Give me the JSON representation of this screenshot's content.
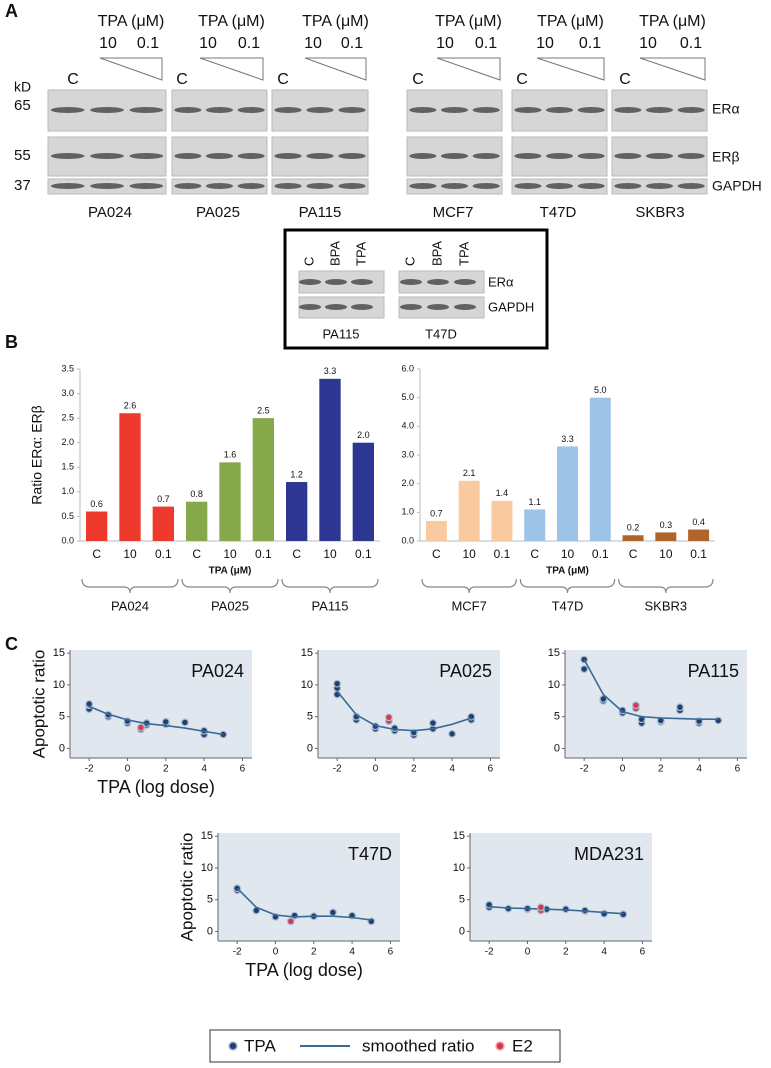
{
  "panel_a": {
    "label": "A",
    "kd": "kD",
    "markers": [
      "65",
      "55",
      "37"
    ],
    "proteins": [
      "ERα",
      "ERβ",
      "GAPDH"
    ],
    "blots": [
      {
        "header": "TPA (μM)",
        "high": "10",
        "low": "0.1",
        "control": "C",
        "cell_line": "PA024"
      },
      {
        "header": "TPA (μM)",
        "high": "10",
        "low": "0.1",
        "control": "C",
        "cell_line": "PA025"
      },
      {
        "header": "TPA (μM)",
        "high": "10",
        "low": "0.1",
        "control": "C",
        "cell_line": "PA115"
      },
      {
        "header": "TPA (μM)",
        "high": "10",
        "low": "0.1",
        "control": "C",
        "cell_line": "MCF7"
      },
      {
        "header": "TPA (μM)",
        "high": "10",
        "low": "0.1",
        "control": "C",
        "cell_line": "T47D"
      },
      {
        "header": "TPA (μM)",
        "high": "10",
        "low": "0.1",
        "control": "C",
        "cell_line": "SKBR3"
      }
    ],
    "inset": {
      "lanes": [
        "C",
        "BPA",
        "TPA"
      ],
      "proteins": [
        "ERα",
        "GAPDH"
      ],
      "cell_lines": [
        "PA115",
        "T47D"
      ]
    }
  },
  "panel_b_label": "B",
  "panel_c_label": "C",
  "chart_data": [
    {
      "type": "bar",
      "ylabel": "Ratio ERα: ERβ",
      "xlabel": "TPA (μM)",
      "categories": [
        "C",
        "10",
        "0.1",
        "C",
        "10",
        "0.1",
        "C",
        "10",
        "0.1"
      ],
      "values": [
        0.6,
        2.6,
        0.7,
        0.8,
        1.6,
        2.5,
        1.2,
        3.3,
        2.0
      ],
      "value_labels": [
        "0.6",
        "2.6",
        "0.7",
        "0.8",
        "1.6",
        "2.5",
        "1.2",
        "3.3",
        "2.0"
      ],
      "colors": [
        "#ee3a2c",
        "#ee3a2c",
        "#ee3a2c",
        "#86a84a",
        "#86a84a",
        "#86a84a",
        "#2d3691",
        "#2d3691",
        "#2d3691"
      ],
      "groups": [
        "PA024",
        "PA025",
        "PA115"
      ],
      "ylim": [
        0,
        3.5
      ],
      "yticks": [
        {
          "value": 0,
          "label": "0.0"
        },
        {
          "value": 0.5,
          "label": "0.5"
        },
        {
          "value": 1,
          "label": "1.0"
        },
        {
          "value": 1.5,
          "label": "1.5"
        },
        {
          "value": 2,
          "label": "2.0"
        },
        {
          "value": 2.5,
          "label": "2.5"
        },
        {
          "value": 3,
          "label": "3.0"
        },
        {
          "value": 3.5,
          "label": "3.5"
        }
      ]
    },
    {
      "type": "bar",
      "xlabel": "TPA (μM)",
      "categories": [
        "C",
        "10",
        "0.1",
        "C",
        "10",
        "0.1",
        "C",
        "10",
        "0.1"
      ],
      "values": [
        0.7,
        2.1,
        1.4,
        1.1,
        3.3,
        5.0,
        0.2,
        0.3,
        0.4
      ],
      "value_labels": [
        "0.7",
        "2.1",
        "1.4",
        "1.1",
        "3.3",
        "5.0",
        "0.2",
        "0.3",
        "0.4"
      ],
      "colors": [
        "#f9c9a0",
        "#f9c9a0",
        "#f9c9a0",
        "#9dc3e6",
        "#9dc3e6",
        "#9dc3e6",
        "#b0642a",
        "#b0642a",
        "#b0642a"
      ],
      "groups": [
        "MCF7",
        "T47D",
        "SKBR3"
      ],
      "ylim": [
        0,
        6
      ],
      "yticks": [
        {
          "value": 0,
          "label": "0.0"
        },
        {
          "value": 1,
          "label": "1.0"
        },
        {
          "value": 2,
          "label": "2.0"
        },
        {
          "value": 3,
          "label": "3.0"
        },
        {
          "value": 4,
          "label": "4.0"
        },
        {
          "value": 5,
          "label": "5.0"
        },
        {
          "value": 6,
          "label": "6.0"
        }
      ]
    },
    {
      "type": "scatter",
      "title": "PA024",
      "ylabel": "Apoptotic ratio",
      "xlabel": "TPA (log dose)",
      "xlim": [
        -3,
        6.5
      ],
      "ylim": [
        -1.5,
        15.5
      ],
      "xticks": [
        -2,
        0,
        2,
        4,
        6
      ],
      "yticks": [
        0,
        5,
        10,
        15
      ],
      "series": [
        {
          "name": "TPA",
          "color": "#233e70",
          "x": [
            -2,
            -2,
            -2,
            -1,
            -1,
            0,
            0,
            1,
            1,
            2,
            2,
            3,
            4,
            4,
            5
          ],
          "values": [
            6.2,
            6.8,
            7.0,
            5.0,
            5.3,
            4.0,
            4.3,
            3.7,
            4.0,
            3.8,
            4.2,
            4.1,
            2.2,
            2.8,
            2.2
          ]
        },
        {
          "name": "smoothed ratio",
          "color": "#3a6a96",
          "mode": "line",
          "x": [
            -2,
            -1,
            0,
            1,
            2,
            3,
            4,
            5
          ],
          "values": [
            6.6,
            5.4,
            4.5,
            3.9,
            3.6,
            3.2,
            2.7,
            2.2
          ]
        },
        {
          "name": "E2",
          "color": "#d9374d",
          "x": [
            0.7,
            0.7
          ],
          "values": [
            3.0,
            3.3
          ]
        }
      ]
    },
    {
      "type": "scatter",
      "title": "PA025",
      "xlim": [
        -3,
        6.5
      ],
      "ylim": [
        -1.5,
        15.5
      ],
      "xticks": [
        -2,
        0,
        2,
        4,
        6
      ],
      "yticks": [
        0,
        5,
        10,
        15
      ],
      "series": [
        {
          "name": "TPA",
          "color": "#233e70",
          "x": [
            -2,
            -2,
            -2,
            -1,
            -1,
            0,
            0,
            1,
            1,
            2,
            2,
            3,
            3,
            4,
            5,
            5
          ],
          "values": [
            8.5,
            9.5,
            10.2,
            4.5,
            5.0,
            3.1,
            3.5,
            2.8,
            3.2,
            2.1,
            2.5,
            3.1,
            4.0,
            2.3,
            4.5,
            5.0
          ]
        },
        {
          "name": "smoothed ratio",
          "color": "#3a6a96",
          "mode": "line",
          "x": [
            -2,
            -1,
            0,
            1,
            2,
            3,
            4,
            5
          ],
          "values": [
            9.0,
            5.3,
            3.6,
            3.0,
            2.8,
            3.1,
            3.8,
            4.8
          ]
        },
        {
          "name": "E2",
          "color": "#d9374d",
          "x": [
            0.7,
            0.7
          ],
          "values": [
            4.3,
            4.9
          ]
        }
      ]
    },
    {
      "type": "scatter",
      "title": "PA115",
      "xlim": [
        -3,
        6.5
      ],
      "ylim": [
        -1.5,
        15.5
      ],
      "xticks": [
        -2,
        0,
        2,
        4,
        6
      ],
      "yticks": [
        0,
        5,
        10,
        15
      ],
      "series": [
        {
          "name": "TPA",
          "color": "#233e70",
          "x": [
            -2,
            -2,
            -1,
            -1,
            0,
            0,
            1,
            1,
            2,
            2,
            3,
            3,
            4,
            4,
            5
          ],
          "values": [
            12.5,
            14.0,
            7.5,
            7.8,
            5.6,
            6.0,
            4.0,
            4.6,
            4.2,
            4.4,
            6.0,
            6.5,
            4.0,
            4.3,
            4.4
          ]
        },
        {
          "name": "smoothed ratio",
          "color": "#3a6a96",
          "mode": "line",
          "x": [
            -2,
            -1,
            0,
            1,
            2,
            3,
            4,
            5
          ],
          "values": [
            14.0,
            8.5,
            5.8,
            5.0,
            4.8,
            4.7,
            4.6,
            4.6
          ]
        },
        {
          "name": "E2",
          "color": "#d9374d",
          "x": [
            0.7,
            0.7
          ],
          "values": [
            6.3,
            6.8
          ]
        }
      ]
    },
    {
      "type": "scatter",
      "title": "T47D",
      "ylabel": "Apoptotic ratio",
      "xlabel": "TPA (log dose)",
      "xlim": [
        -3,
        6.5
      ],
      "ylim": [
        -1.5,
        15.5
      ],
      "xticks": [
        -2,
        0,
        2,
        4,
        6
      ],
      "yticks": [
        0,
        5,
        10,
        15
      ],
      "series": [
        {
          "name": "TPA",
          "color": "#233e70",
          "x": [
            -2,
            -2,
            -1,
            0,
            1,
            2,
            3,
            4,
            5
          ],
          "values": [
            6.5,
            6.8,
            3.3,
            2.3,
            2.5,
            2.4,
            3.0,
            2.5,
            1.6
          ]
        },
        {
          "name": "smoothed ratio",
          "color": "#3a6a96",
          "mode": "line",
          "x": [
            -2,
            -1,
            0,
            1,
            2,
            3,
            4,
            5
          ],
          "values": [
            6.8,
            3.8,
            2.6,
            2.3,
            2.4,
            2.4,
            2.2,
            1.8
          ]
        },
        {
          "name": "E2",
          "color": "#d9374d",
          "x": [
            0.8
          ],
          "values": [
            1.6
          ]
        }
      ]
    },
    {
      "type": "scatter",
      "title": "MDA231",
      "xlim": [
        -3,
        6.5
      ],
      "ylim": [
        -1.5,
        15.5
      ],
      "xticks": [
        -2,
        0,
        2,
        4,
        6
      ],
      "yticks": [
        0,
        5,
        10,
        15
      ],
      "series": [
        {
          "name": "TPA",
          "color": "#233e70",
          "x": [
            -2,
            -2,
            -1,
            0,
            0,
            1,
            2,
            3,
            3,
            4,
            5
          ],
          "values": [
            3.8,
            4.2,
            3.6,
            3.5,
            3.6,
            3.5,
            3.5,
            3.2,
            3.3,
            2.8,
            2.7
          ]
        },
        {
          "name": "smoothed ratio",
          "color": "#3a6a96",
          "mode": "line",
          "x": [
            -2,
            -1,
            0,
            1,
            2,
            3,
            4,
            5
          ],
          "values": [
            3.9,
            3.7,
            3.6,
            3.5,
            3.4,
            3.2,
            3.0,
            2.8
          ]
        },
        {
          "name": "E2",
          "color": "#d9374d",
          "x": [
            0.7,
            0.7
          ],
          "values": [
            3.3,
            3.8
          ]
        }
      ]
    }
  ]
}
